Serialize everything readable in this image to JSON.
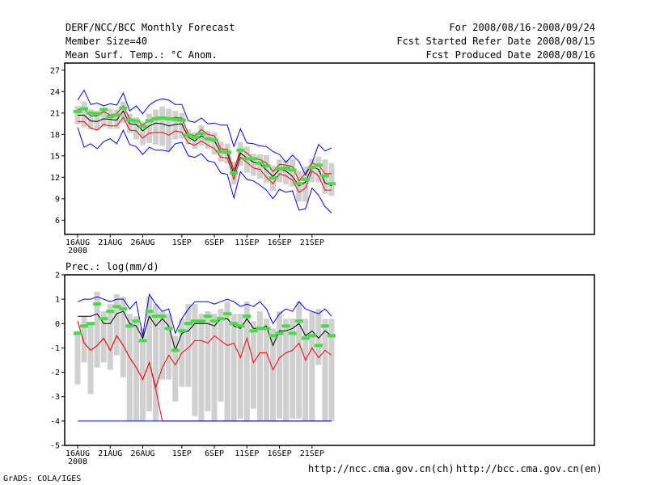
{
  "header": {
    "title": "DERF/NCC/BCC Monthly Forecast",
    "member_size": "Member Size=40",
    "variable": "Mean Surf. Temp.: °C Anom.",
    "period": "For 2008/08/16-2008/09/24",
    "started": "Fcst Started Refer Date 2008/08/15",
    "produced": "Fcst Produced Date 2008/08/16"
  },
  "footer": {
    "grads": "GrADS: COLA/IGES",
    "url_ncc": "http://ncc.cma.gov.cn(ch)",
    "url_bcc": "http://bcc.cma.gov.cn(en)"
  },
  "colors": {
    "max": "#0000ff",
    "min": "#ff0000",
    "mean": "#000000",
    "box": "#d0d0d0",
    "median": "#44dd44"
  },
  "chart_data": [
    {
      "type": "line",
      "title": "Mean Surf. Temp.: °C Anom.",
      "ylabel": "",
      "ylim": [
        4,
        28
      ],
      "yticks": [
        "27",
        "24",
        "21",
        "18",
        "15",
        "12",
        "9",
        "6"
      ],
      "ytick_values": [
        27,
        24,
        21,
        18,
        15,
        12,
        9,
        6
      ],
      "xticks": [
        "16AUG",
        "21AUG",
        "26AUG",
        "1SEP",
        "6SEP",
        "11SEP",
        "16SEP",
        "21SEP"
      ],
      "xtick_days": [
        0,
        5,
        10,
        16,
        21,
        26,
        31,
        36
      ],
      "xtick_sub": "2008",
      "days": [
        0,
        1,
        2,
        3,
        4,
        5,
        6,
        7,
        8,
        9,
        10,
        11,
        12,
        13,
        14,
        15,
        16,
        17,
        18,
        19,
        20,
        21,
        22,
        23,
        24,
        25,
        26,
        27,
        28,
        29,
        30,
        31,
        32,
        33,
        34,
        35,
        36,
        37,
        38,
        39
      ],
      "series": [
        {
          "name": "max",
          "color_key": "max",
          "values": [
            22.8,
            24.2,
            22.2,
            22.4,
            22.0,
            22.3,
            22.1,
            23.8,
            21.3,
            22.0,
            20.9,
            22.1,
            22.7,
            23.0,
            22.8,
            22.2,
            22.2,
            19.9,
            19.7,
            20.3,
            19.5,
            19.6,
            19.3,
            19.3,
            16.3,
            18.8,
            16.8,
            16.7,
            16.4,
            16.3,
            15.6,
            15.2,
            14.1,
            15.1,
            14.2,
            12.3,
            14.0,
            16.6,
            15.7,
            16.1
          ]
        },
        {
          "name": "p_upper",
          "color_key": "min",
          "values": [
            21.5,
            21.6,
            20.6,
            20.6,
            21.2,
            20.7,
            20.9,
            22.0,
            20.2,
            20.0,
            19.3,
            20.0,
            20.4,
            20.4,
            20.1,
            20.4,
            20.3,
            18.1,
            17.8,
            18.7,
            18.0,
            17.8,
            16.0,
            15.9,
            13.0,
            15.9,
            15.4,
            14.6,
            14.5,
            14.0,
            12.8,
            13.8,
            13.7,
            13.5,
            11.5,
            12.6,
            14.0,
            13.7,
            12.5,
            12.5
          ]
        },
        {
          "name": "mean",
          "color_key": "mean",
          "values": [
            20.7,
            20.7,
            19.9,
            19.8,
            20.2,
            20.1,
            20.0,
            21.3,
            19.5,
            19.4,
            18.5,
            19.2,
            19.6,
            19.5,
            19.2,
            19.4,
            19.5,
            17.6,
            17.1,
            17.8,
            17.3,
            17.1,
            15.5,
            15.4,
            12.4,
            15.4,
            14.7,
            14.1,
            13.9,
            13.0,
            12.1,
            13.1,
            12.9,
            12.1,
            10.8,
            11.3,
            13.5,
            13.1,
            11.2,
            10.8
          ]
        },
        {
          "name": "p_lower",
          "color_key": "min",
          "values": [
            19.8,
            19.8,
            18.9,
            18.6,
            19.4,
            19.2,
            19.2,
            20.4,
            18.6,
            18.5,
            17.5,
            18.2,
            18.3,
            18.3,
            17.9,
            18.5,
            18.3,
            16.8,
            16.5,
            17.1,
            16.5,
            16.0,
            14.8,
            14.7,
            11.7,
            14.8,
            14.1,
            13.3,
            13.1,
            12.0,
            11.1,
            12.5,
            12.2,
            11.6,
            9.9,
            10.5,
            12.9,
            12.2,
            10.2,
            10.2
          ]
        },
        {
          "name": "min",
          "color_key": "max",
          "values": [
            19.0,
            16.2,
            16.7,
            16.0,
            17.0,
            17.4,
            16.7,
            18.6,
            16.6,
            16.3,
            15.2,
            16.2,
            15.8,
            15.8,
            15.6,
            16.7,
            16.9,
            15.0,
            14.8,
            15.3,
            14.3,
            14.1,
            12.6,
            12.4,
            9.1,
            12.8,
            11.7,
            11.5,
            10.9,
            10.2,
            9.0,
            10.3,
            9.9,
            10.1,
            7.4,
            7.6,
            10.5,
            9.5,
            7.9,
            7.0
          ]
        }
      ],
      "boxes": {
        "q_high": [
          22.0,
          22.6,
          21.5,
          21.3,
          21.5,
          21.6,
          21.5,
          22.6,
          20.9,
          20.4,
          19.8,
          20.9,
          21.5,
          21.9,
          21.6,
          21.3,
          21.0,
          18.7,
          18.3,
          19.3,
          18.5,
          18.3,
          17.0,
          16.7,
          14.2,
          16.9,
          16.3,
          15.3,
          15.2,
          15.1,
          13.6,
          14.5,
          14.4,
          14.6,
          12.9,
          13.5,
          14.6,
          14.9,
          14.5,
          14.0
        ],
        "q_low": [
          19.4,
          19.0,
          18.7,
          18.7,
          19.1,
          18.8,
          18.8,
          19.6,
          18.2,
          17.3,
          16.5,
          16.8,
          16.6,
          16.4,
          15.7,
          17.3,
          17.4,
          16.6,
          16.0,
          16.4,
          16.0,
          15.2,
          14.2,
          13.9,
          11.0,
          13.6,
          12.6,
          12.2,
          11.8,
          11.2,
          10.1,
          11.3,
          11.0,
          10.7,
          8.6,
          8.6,
          11.3,
          11.3,
          9.7,
          9.4
        ],
        "median": [
          21.2,
          21.6,
          21.0,
          20.9,
          21.5,
          20.5,
          20.7,
          21.7,
          20.0,
          19.9,
          19.1,
          19.9,
          20.2,
          20.3,
          20.2,
          20.1,
          20.0,
          17.9,
          17.6,
          18.1,
          17.4,
          17.2,
          15.6,
          15.5,
          12.6,
          15.8,
          14.6,
          14.6,
          14.0,
          13.6,
          11.9,
          13.2,
          13.3,
          13.0,
          11.1,
          11.7,
          13.4,
          13.7,
          12.2,
          11.1
        ]
      }
    },
    {
      "type": "line",
      "title": "Prec.: log(mm/d)",
      "ylabel": "",
      "ylim": [
        -5,
        2
      ],
      "yticks": [
        "2",
        "1",
        "0",
        "-1",
        "-2",
        "-3",
        "-4",
        "-5"
      ],
      "ytick_values": [
        2,
        1,
        0,
        -1,
        -2,
        -3,
        -4,
        -5
      ],
      "xticks": [
        "16AUG",
        "21AUG",
        "26AUG",
        "1SEP",
        "6SEP",
        "11SEP",
        "16SEP",
        "21SEP"
      ],
      "xtick_days": [
        0,
        5,
        10,
        16,
        21,
        26,
        31,
        36
      ],
      "xtick_sub": "2008",
      "days": [
        0,
        1,
        2,
        3,
        4,
        5,
        6,
        7,
        8,
        9,
        10,
        11,
        12,
        13,
        14,
        15,
        16,
        17,
        18,
        19,
        20,
        21,
        22,
        23,
        24,
        25,
        26,
        27,
        28,
        29,
        30,
        31,
        32,
        33,
        34,
        35,
        36,
        37,
        38,
        39
      ],
      "series": [
        {
          "name": "max",
          "color_key": "max",
          "values": [
            0.9,
            1.0,
            1.0,
            1.1,
            1.0,
            0.9,
            1.0,
            1.0,
            0.6,
            0.9,
            -0.5,
            1.2,
            0.8,
            0.5,
            0.6,
            -0.4,
            0.2,
            0.6,
            0.9,
            0.9,
            0.9,
            0.8,
            0.9,
            1.0,
            0.9,
            0.7,
            0.8,
            0.7,
            0.9,
            0.6,
            0.0,
            0.4,
            0.6,
            0.5,
            0.9,
            0.6,
            0.5,
            0.4,
            0.6,
            0.3
          ]
        },
        {
          "name": "mean",
          "color_key": "mean",
          "values": [
            0.3,
            0.3,
            0.3,
            0.4,
            0.0,
            0.0,
            0.4,
            0.5,
            0.0,
            -0.1,
            -0.6,
            0.3,
            -0.1,
            0.2,
            -0.1,
            -1.1,
            -0.4,
            -0.3,
            0.0,
            0.0,
            0.0,
            -0.1,
            0.2,
            0.2,
            -0.1,
            -0.2,
            0.2,
            -0.2,
            -0.2,
            -0.1,
            -0.9,
            -0.3,
            -0.3,
            -0.2,
            0.0,
            -0.5,
            -0.3,
            -0.6,
            -0.3,
            -0.5
          ]
        },
        {
          "name": "min_mean",
          "color_key": "min",
          "values": [
            0.1,
            -0.8,
            -1.1,
            -0.9,
            -0.6,
            -1.1,
            -0.5,
            -0.9,
            -1.4,
            -1.8,
            -2.3,
            -1.6,
            -2.7,
            -4.0,
            -4.0,
            -4.0,
            -4.0,
            -4.0,
            -4.0,
            -4.0,
            -4.0,
            -4.0,
            -4.0,
            -4.0,
            -4.0,
            -4.0,
            -4.0,
            -4.0,
            -4.0,
            -4.0,
            -4.0,
            -4.0,
            -4.0,
            -4.0,
            -4.0,
            -4.0,
            -4.0,
            -4.0,
            -4.0,
            -4.0
          ]
        },
        {
          "name": "lower_red",
          "color_key": "min",
          "values": [
            0.1,
            -0.8,
            -1.1,
            -0.9,
            -0.6,
            -1.1,
            -0.5,
            -0.9,
            -1.4,
            -1.8,
            -2.3,
            -1.6,
            -2.6,
            -1.8,
            -1.3,
            -1.7,
            -1.2,
            -1.0,
            -0.7,
            -0.7,
            -0.8,
            -0.5,
            -0.7,
            -0.9,
            -0.8,
            -1.4,
            -0.6,
            -1.6,
            -1.2,
            -1.2,
            -1.9,
            -1.4,
            -1.2,
            -1.1,
            -0.8,
            -1.5,
            -1.0,
            -1.4,
            -1.1,
            -1.3
          ]
        },
        {
          "name": "floor",
          "color_key": "max",
          "values": [
            -4.0,
            -4.0,
            -4.0,
            -4.0,
            -4.0,
            -4.0,
            -4.0,
            -4.0,
            -4.0,
            -4.0,
            -4.0,
            -4.0,
            -4.0,
            -4.0,
            -4.0,
            -4.0,
            -4.0,
            -4.0,
            -4.0,
            -4.0,
            -4.0,
            -4.0,
            -4.0,
            -4.0,
            -4.0,
            -4.0,
            -4.0,
            -4.0,
            -4.0,
            -4.0,
            -4.0,
            -4.0,
            -4.0,
            -4.0,
            -4.0,
            -4.0,
            -4.0,
            -4.0,
            -4.0,
            -4.0
          ]
        }
      ],
      "boxes": {
        "q_high": [
          -0.3,
          0.3,
          0.0,
          1.3,
          0.5,
          0.8,
          1.2,
          1.1,
          0.4,
          0.3,
          -0.2,
          1.1,
          0.8,
          0.5,
          0.4,
          -0.5,
          0.2,
          0.8,
          0.8,
          0.4,
          0.5,
          0.4,
          0.6,
          0.9,
          0.4,
          0.4,
          0.9,
          0.1,
          0.5,
          0.2,
          -0.2,
          0.5,
          0.2,
          0.2,
          0.9,
          0.2,
          0.5,
          0.6,
          0.2,
          0.2
        ],
        "q_low": [
          -2.5,
          -1.6,
          -2.9,
          -1.8,
          -1.6,
          -1.9,
          -1.3,
          -2.2,
          -4.0,
          -4.0,
          -4.0,
          -3.6,
          -4.0,
          -2.3,
          -2.3,
          -3.2,
          -2.6,
          -2.6,
          -3.8,
          -4.0,
          -3.6,
          -4.0,
          -3.2,
          -4.0,
          -4.0,
          -3.9,
          -4.0,
          -3.5,
          -4.0,
          -4.0,
          -4.0,
          -3.9,
          -4.0,
          -3.9,
          -3.9,
          -4.0,
          -4.0,
          -1.7,
          -4.0,
          -4.0
        ],
        "median": [
          -0.4,
          -0.1,
          0.0,
          0.8,
          0.2,
          0.5,
          0.7,
          0.6,
          -0.1,
          0.1,
          -0.7,
          0.5,
          0.3,
          0.3,
          -0.2,
          -1.1,
          -0.3,
          0.0,
          0.1,
          0.1,
          0.3,
          0.1,
          0.2,
          0.4,
          0.0,
          -0.1,
          0.3,
          -0.3,
          -0.2,
          -0.2,
          -0.5,
          -0.4,
          -0.1,
          -0.4,
          0.1,
          -0.6,
          -0.5,
          -0.9,
          -0.1,
          -0.5
        ]
      }
    }
  ]
}
